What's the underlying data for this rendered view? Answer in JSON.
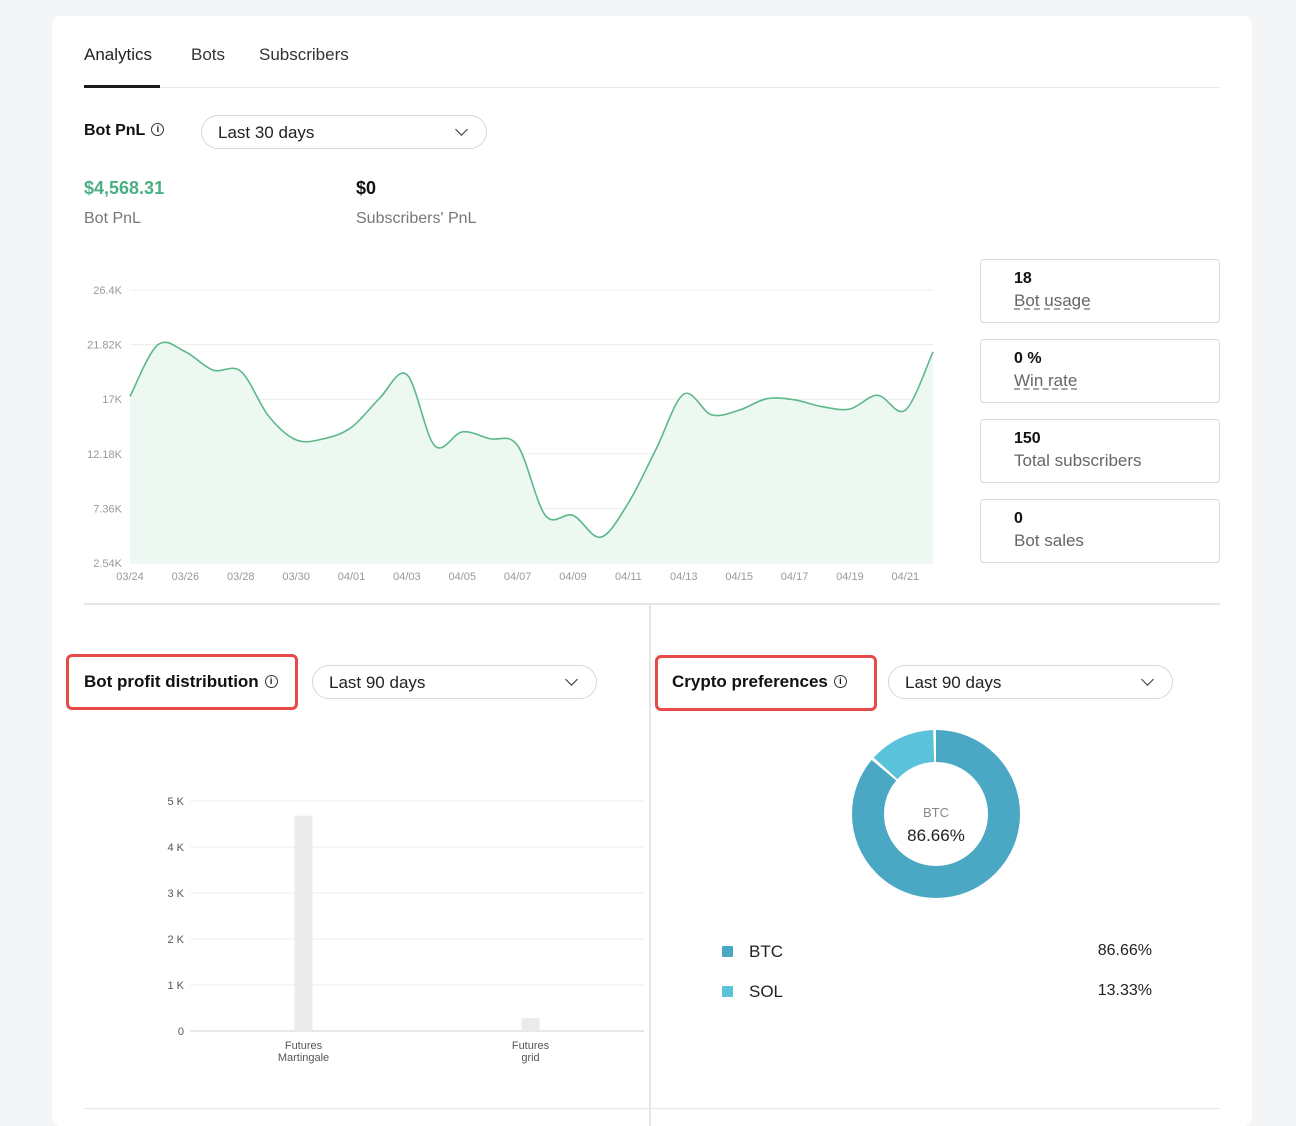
{
  "tabs": [
    {
      "label": "Analytics",
      "active": true
    },
    {
      "label": "Bots",
      "active": false
    },
    {
      "label": "Subscribers",
      "active": false
    }
  ],
  "bot_pnl": {
    "title": "Bot PnL",
    "range_select": "Last 30 days",
    "metrics": [
      {
        "value": "$4,568.31",
        "label": "Bot PnL",
        "color": "#4caf84"
      },
      {
        "value": "$0",
        "label": "Subscribers' PnL",
        "color": "#111111"
      }
    ]
  },
  "stats": [
    {
      "value": "18",
      "label": "Bot usage"
    },
    {
      "value": "0 %",
      "label": "Win rate"
    },
    {
      "value": "150",
      "label": "Total subscribers"
    },
    {
      "value": "0",
      "label": "Bot sales"
    }
  ],
  "profit_distribution": {
    "title": "Bot profit distribution",
    "range_select": "Last 90 days"
  },
  "crypto_preferences": {
    "title": "Crypto preferences",
    "range_select": "Last 90 days",
    "center_label": "BTC",
    "center_value": "86.66%",
    "legend": [
      {
        "name": "BTC",
        "percent": "86.66%",
        "color": "#4aa8c4"
      },
      {
        "name": "SOL",
        "percent": "13.33%",
        "color": "#5bc3d9"
      }
    ]
  },
  "chart_data": [
    {
      "type": "area",
      "y_tick_labels": [
        "26.4K",
        "21.82K",
        "17K",
        "12.18K",
        "7.36K",
        "2.54K"
      ],
      "x_tick_labels": [
        "03/24",
        "03/26",
        "03/28",
        "03/30",
        "04/01",
        "04/03",
        "04/05",
        "04/07",
        "04/09",
        "04/11",
        "04/13",
        "04/15",
        "04/17",
        "04/19",
        "04/21"
      ],
      "ylim": [
        2540,
        26400
      ],
      "x_range": [
        0,
        29
      ],
      "color": "#5cb88a",
      "fill": "#ecf8f1",
      "grid": true,
      "x": [
        0,
        1,
        2,
        3,
        4,
        5,
        6,
        7,
        8,
        9,
        10,
        11,
        12,
        13,
        14,
        15,
        16,
        17,
        18,
        19,
        20,
        21,
        22,
        23,
        24,
        25,
        26,
        27,
        28,
        29
      ],
      "values": [
        17100,
        21600,
        21000,
        19400,
        19300,
        15400,
        13300,
        13400,
        14400,
        16900,
        19000,
        12800,
        14000,
        13400,
        12800,
        6700,
        6700,
        4800,
        7800,
        12500,
        17300,
        15500,
        15900,
        16900,
        16800,
        16200,
        16000,
        17200,
        15900,
        21000
      ]
    },
    {
      "type": "bar",
      "categories": [
        "Futures\nMartingale",
        "Futures\ngrid"
      ],
      "category_lines": [
        [
          "Futures",
          "Martingale"
        ],
        [
          "Futures",
          "grid"
        ]
      ],
      "values": [
        4680,
        280
      ],
      "y_tick_labels": [
        "5 K",
        "4 K",
        "3 K",
        "2 K",
        "1 K",
        "0"
      ],
      "ylim": [
        0,
        5000
      ],
      "color": "#ebebeb",
      "grid": true
    },
    {
      "type": "pie",
      "categories": [
        "BTC",
        "SOL"
      ],
      "values": [
        86.66,
        13.33
      ],
      "colors": [
        "#4aa8c4",
        "#5bc3d9"
      ]
    }
  ]
}
